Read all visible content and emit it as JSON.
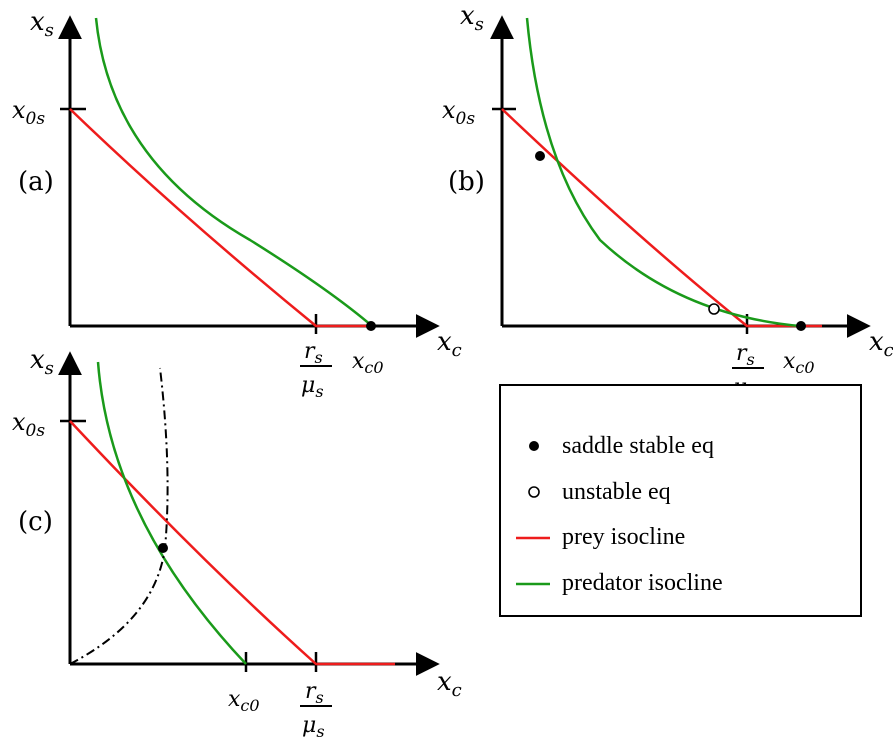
{
  "panels": [
    {
      "id": "a",
      "label": "(a)",
      "axes": {
        "y": "x_s",
        "x": "x_c"
      },
      "y_tick": "x_0s",
      "x_ticks": [
        "r_s / μ_s",
        "x_c0"
      ],
      "equilibria": [
        "saddle stable eq"
      ]
    },
    {
      "id": "b",
      "label": "(b)",
      "axes": {
        "y": "x_s",
        "x": "x_c"
      },
      "y_tick": "x_0s",
      "x_ticks": [
        "r_s / μ_s",
        "x_c0"
      ],
      "equilibria": [
        "saddle stable eq",
        "unstable eq",
        "saddle stable eq"
      ]
    },
    {
      "id": "c",
      "label": "(c)",
      "axes": {
        "y": "x_s",
        "x": "x_c"
      },
      "y_tick": "x_0s",
      "x_ticks": [
        "x_c0",
        "r_s / μ_s"
      ],
      "equilibria": [
        "saddle stable eq"
      ]
    }
  ],
  "legend": {
    "items": [
      {
        "key": "saddle",
        "label": "saddle stable eq",
        "marker": "filled-circle",
        "color": "#000000"
      },
      {
        "key": "unstable",
        "label": "unstable eq",
        "marker": "open-circle",
        "color": "#000000"
      },
      {
        "key": "prey",
        "label": "prey isocline",
        "marker": "line",
        "color": "#ee1c1c"
      },
      {
        "key": "predator",
        "label": "predator isocline",
        "marker": "line",
        "color": "#1a9a1a"
      }
    ]
  },
  "colors": {
    "prey": "#ee1c1c",
    "predator": "#1a9a1a",
    "axis": "#000000"
  }
}
